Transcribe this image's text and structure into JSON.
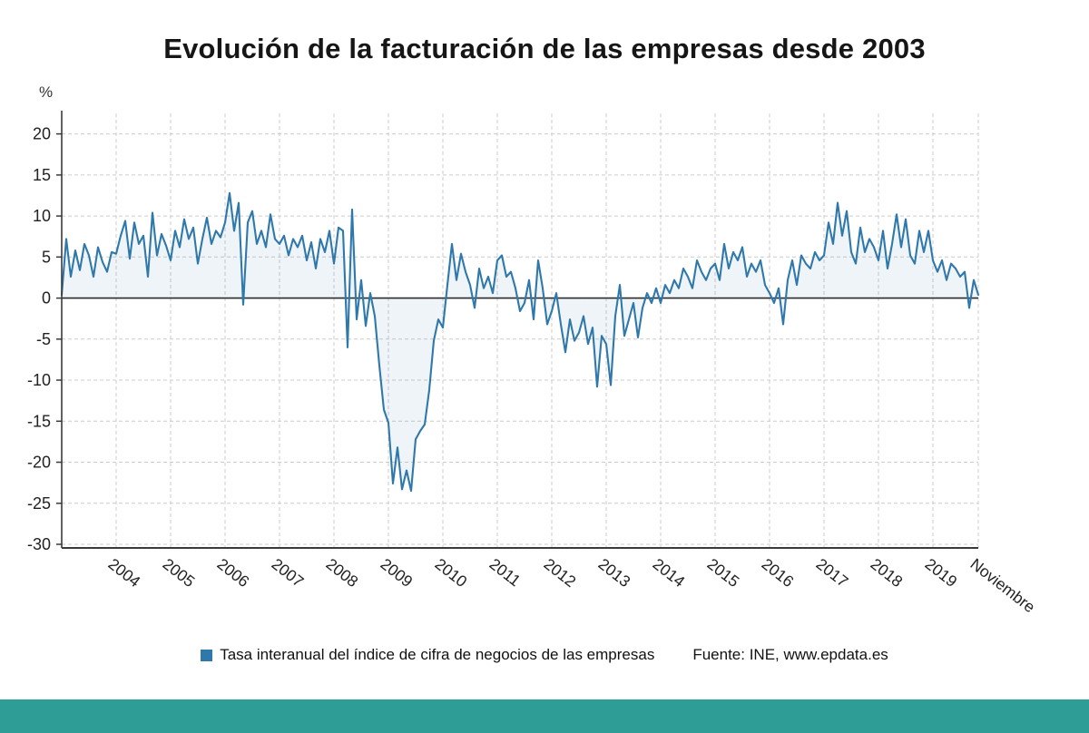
{
  "page": {
    "title": "Evolución de la facturación de las empresas desde 2003",
    "source": "Fuente: INE, www.epdata.es",
    "colors": {
      "line": "#2f78ab",
      "area_fill_opacity": "0.08",
      "grid": "#cccccc",
      "zero_line": "#2b2b2b",
      "axis": "#3a3a3a",
      "tick_text": "#222222",
      "footer_bar": "#2e9d96"
    }
  },
  "chart_data": {
    "type": "line",
    "title": "Evolución de la facturación de las empresas desde 2003",
    "xlabel": "",
    "ylabel": "%",
    "ylim": [
      -30,
      22.5
    ],
    "y_ticks": [
      20,
      15,
      10,
      5,
      0,
      -5,
      -10,
      -15,
      -20,
      -25,
      -30
    ],
    "grid": true,
    "legend_position": "bottom",
    "x_range": {
      "start": "2003-01",
      "end": "2019-11",
      "frequency": "monthly"
    },
    "x_ticks": [
      {
        "label": "2004",
        "month_index": 12
      },
      {
        "label": "2005",
        "month_index": 24
      },
      {
        "label": "2006",
        "month_index": 36
      },
      {
        "label": "2007",
        "month_index": 48
      },
      {
        "label": "2008",
        "month_index": 60
      },
      {
        "label": "2009",
        "month_index": 72
      },
      {
        "label": "2010",
        "month_index": 84
      },
      {
        "label": "2011",
        "month_index": 96
      },
      {
        "label": "2012",
        "month_index": 108
      },
      {
        "label": "2013",
        "month_index": 120
      },
      {
        "label": "2014",
        "month_index": 132
      },
      {
        "label": "2015",
        "month_index": 144
      },
      {
        "label": "2016",
        "month_index": 156
      },
      {
        "label": "2017",
        "month_index": 168
      },
      {
        "label": "2018",
        "month_index": 180
      },
      {
        "label": "2019",
        "month_index": 192
      },
      {
        "label": "Noviembre",
        "month_index": 202
      }
    ],
    "series": [
      {
        "name": "Tasa interanual del índice de cifra de negocios de las empresas",
        "color": "#2f78ab",
        "values": [
          0.4,
          7.2,
          2.6,
          5.8,
          3.4,
          6.6,
          5.2,
          2.6,
          6.2,
          4.4,
          3.2,
          5.6,
          5.4,
          7.6,
          9.4,
          4.8,
          9.2,
          6.6,
          7.6,
          2.6,
          10.4,
          5.2,
          7.8,
          6.4,
          4.6,
          8.2,
          6.2,
          9.6,
          7.2,
          8.6,
          4.2,
          7.2,
          9.8,
          6.6,
          8.2,
          7.4,
          9.2,
          12.8,
          8.2,
          11.6,
          -0.8,
          9.2,
          10.6,
          6.6,
          8.2,
          6.2,
          10.2,
          7.2,
          6.6,
          7.6,
          5.2,
          7.2,
          6.2,
          7.6,
          4.6,
          6.8,
          3.6,
          7.2,
          5.6,
          8.2,
          4.2,
          8.6,
          8.2,
          -6.0,
          10.8,
          -2.6,
          2.2,
          -3.4,
          0.6,
          -2.2,
          -8.2,
          -13.6,
          -15.2,
          -22.6,
          -18.2,
          -23.3,
          -21.0,
          -23.5,
          -17.2,
          -16.2,
          -15.4,
          -11.2,
          -5.2,
          -2.6,
          -3.6,
          1.6,
          6.6,
          2.2,
          5.4,
          3.2,
          1.6,
          -1.2,
          3.6,
          1.2,
          2.6,
          0.6,
          4.6,
          5.2,
          2.6,
          3.2,
          1.2,
          -1.6,
          -0.6,
          2.2,
          -2.6,
          4.6,
          1.2,
          -3.2,
          -1.6,
          0.6,
          -3.2,
          -6.6,
          -2.6,
          -5.2,
          -4.2,
          -2.2,
          -5.6,
          -3.6,
          -10.8,
          -4.6,
          -5.6,
          -10.6,
          -2.2,
          1.6,
          -4.6,
          -2.6,
          -0.6,
          -4.8,
          -1.2,
          0.6,
          -0.6,
          1.2,
          -0.6,
          1.6,
          0.6,
          2.2,
          1.2,
          3.6,
          2.6,
          1.2,
          4.6,
          3.2,
          2.2,
          3.6,
          4.2,
          2.2,
          6.6,
          3.6,
          5.6,
          4.6,
          6.2,
          2.6,
          4.2,
          3.2,
          4.6,
          1.6,
          0.6,
          -0.6,
          1.2,
          -3.2,
          2.2,
          4.6,
          1.6,
          5.2,
          4.2,
          3.6,
          5.6,
          4.6,
          5.2,
          9.2,
          6.6,
          11.6,
          7.6,
          10.6,
          5.6,
          4.2,
          8.6,
          5.6,
          7.2,
          6.2,
          4.6,
          8.2,
          3.6,
          6.6,
          10.2,
          6.2,
          9.6,
          5.2,
          4.2,
          8.2,
          5.6,
          8.2,
          4.6,
          3.2,
          4.6,
          2.2,
          4.2,
          3.6,
          2.6,
          3.2,
          -1.2,
          2.2,
          0.4
        ]
      }
    ]
  }
}
